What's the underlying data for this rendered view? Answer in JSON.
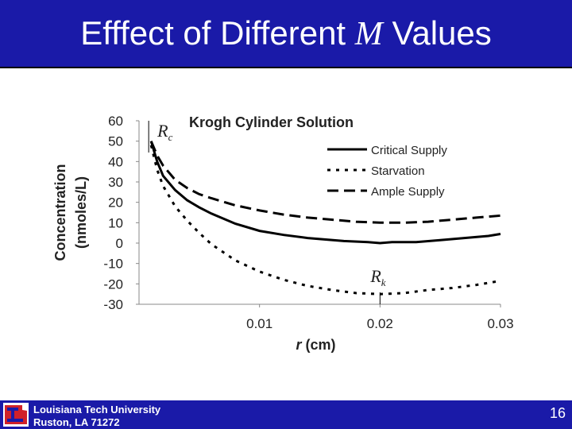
{
  "slide": {
    "title_prefix": "Efffect of Different ",
    "title_symbol": "M",
    "title_suffix": " Values",
    "page_number": "16"
  },
  "footer": {
    "line1": "Louisiana Tech University",
    "line2": "Ruston, LA 71272"
  },
  "colors": {
    "title_bar": "#1a1aa8",
    "footer_bar": "#1a1aa8",
    "logo_red": "#d0202a"
  },
  "chart_data": {
    "type": "line",
    "title": "Krogh Cylinder Solution",
    "xlabel_italic": "r",
    "xlabel_rest": "  (cm)",
    "ylabel_line1": "Concentration",
    "ylabel_line2": "(nmoles/L)",
    "xlim": [
      0,
      0.03
    ],
    "ylim": [
      -30,
      60
    ],
    "xticks": [
      "0.01",
      "0.02",
      "0.03"
    ],
    "xtick_values": [
      0.01,
      0.02,
      0.03
    ],
    "yticks": [
      60,
      50,
      40,
      30,
      20,
      10,
      0,
      -10,
      -20,
      -30
    ],
    "legend_position": "top-right",
    "grid": false,
    "annotations": [
      {
        "label": "R",
        "sub": "c",
        "x": 0.001
      },
      {
        "label": "R",
        "sub": "k",
        "x": 0.02
      }
    ],
    "series": [
      {
        "name": "Critical Supply",
        "style": "solid",
        "x": [
          0.001,
          0.0015,
          0.002,
          0.003,
          0.004,
          0.005,
          0.006,
          0.008,
          0.01,
          0.012,
          0.014,
          0.017,
          0.019,
          0.02,
          0.021,
          0.023,
          0.025,
          0.027,
          0.029,
          0.03
        ],
        "y": [
          50,
          40,
          33,
          26,
          21,
          17.5,
          14.5,
          9.5,
          6,
          4,
          2.5,
          1,
          0.5,
          0,
          0.5,
          0.5,
          1.5,
          2.5,
          3.5,
          4.5
        ]
      },
      {
        "name": "Starvation",
        "style": "dotted",
        "x": [
          0.001,
          0.0015,
          0.002,
          0.003,
          0.004,
          0.005,
          0.006,
          0.008,
          0.01,
          0.012,
          0.014,
          0.016,
          0.018,
          0.02,
          0.022,
          0.024,
          0.026,
          0.028,
          0.03
        ],
        "y": [
          48,
          36,
          28,
          18,
          11,
          5,
          -0.5,
          -8.5,
          -14,
          -18,
          -21,
          -23,
          -24.5,
          -25,
          -24.5,
          -23,
          -22,
          -20.5,
          -18.5
        ]
      },
      {
        "name": "Ample Supply",
        "style": "dashed",
        "x": [
          0.001,
          0.0015,
          0.002,
          0.003,
          0.004,
          0.005,
          0.006,
          0.008,
          0.01,
          0.012,
          0.014,
          0.016,
          0.018,
          0.02,
          0.022,
          0.024,
          0.026,
          0.028,
          0.03
        ],
        "y": [
          50,
          43,
          38,
          31,
          27,
          24,
          22,
          18.5,
          16,
          14,
          12.5,
          11.5,
          10.5,
          10,
          10,
          10.5,
          11.5,
          12.5,
          13.5
        ]
      }
    ]
  }
}
